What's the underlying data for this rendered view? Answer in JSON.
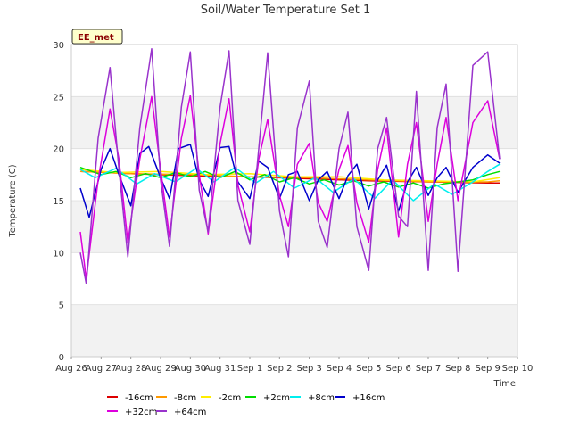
{
  "chart_data": {
    "type": "line",
    "title": "Soil/Water Temperature Set 1",
    "xlabel": "Time",
    "ylabel": "Temperature (C)",
    "ylim": [
      0,
      30
    ],
    "yticks": [
      "0",
      "5",
      "10",
      "15",
      "20",
      "25",
      "30"
    ],
    "xticks": [
      "Aug 26",
      "Aug 27",
      "Aug 28",
      "Aug 29",
      "Aug 30",
      "Aug 31",
      "Sep 1",
      "Sep 2",
      "Sep 3",
      "Sep 4",
      "Sep 5",
      "Sep 6",
      "Sep 7",
      "Sep 8",
      "Sep 9",
      "Sep 10"
    ],
    "xlim_days": [
      0,
      15
    ],
    "grid": "horizontal bands",
    "legend_position": "bottom",
    "station_label": "EE_met",
    "series": [
      {
        "name": "-16cm",
        "color": "#dd0000",
        "x": [
          0.3,
          2,
          4,
          6,
          8,
          10,
          12,
          14,
          14.4
        ],
        "y": [
          17.8,
          17.6,
          17.4,
          17.3,
          17.1,
          16.9,
          16.8,
          16.7,
          16.7
        ]
      },
      {
        "name": "-8cm",
        "color": "#ff9900",
        "x": [
          0.3,
          2,
          4,
          6,
          8,
          10,
          12,
          14,
          14.4
        ],
        "y": [
          17.8,
          17.6,
          17.5,
          17.3,
          17.2,
          17.0,
          16.8,
          16.8,
          16.9
        ]
      },
      {
        "name": "-2cm",
        "color": "#ffee00",
        "x": [
          0.3,
          1.5,
          3,
          4.5,
          6,
          7.5,
          9,
          10.5,
          12,
          13.5,
          14.4
        ],
        "y": [
          18.0,
          17.7,
          17.8,
          17.5,
          17.6,
          17.3,
          17.3,
          17.0,
          16.9,
          16.8,
          17.2
        ]
      },
      {
        "name": "+2cm",
        "color": "#00dd00",
        "x": [
          0.3,
          1,
          1.5,
          2,
          2.5,
          3,
          3.5,
          4,
          4.5,
          5,
          5.5,
          6,
          6.5,
          7,
          7.5,
          8,
          8.5,
          9,
          9.5,
          10,
          10.5,
          11,
          11.5,
          12,
          12.5,
          13,
          13.5,
          14,
          14.4
        ],
        "y": [
          18.2,
          17.5,
          17.8,
          17.2,
          17.6,
          17.2,
          17.7,
          17.3,
          17.8,
          17.2,
          17.8,
          17.0,
          17.5,
          16.8,
          17.2,
          16.6,
          17.0,
          16.5,
          16.9,
          16.4,
          16.8,
          16.3,
          16.7,
          16.2,
          16.6,
          16.8,
          17.0,
          17.5,
          17.8
        ]
      },
      {
        "name": "+8cm",
        "color": "#00eeee",
        "x": [
          0.3,
          0.8,
          1.5,
          2.2,
          2.8,
          3.5,
          4.2,
          4.8,
          5.5,
          6.2,
          6.8,
          7.5,
          8.2,
          8.8,
          9.5,
          10.2,
          10.8,
          11.5,
          12.2,
          12.8,
          13.5,
          14,
          14.4
        ],
        "y": [
          18.0,
          17.2,
          18.1,
          16.6,
          17.6,
          16.8,
          18.1,
          16.8,
          18.2,
          16.7,
          17.8,
          16.2,
          17.2,
          15.8,
          17.1,
          15.2,
          17.0,
          15.0,
          16.6,
          15.6,
          16.8,
          17.8,
          18.5
        ]
      },
      {
        "name": "+16cm",
        "color": "#0000cc",
        "x": [
          0.3,
          0.6,
          1.0,
          1.3,
          1.6,
          2.0,
          2.3,
          2.6,
          3.0,
          3.3,
          3.6,
          4.0,
          4.3,
          4.6,
          5.0,
          5.3,
          5.6,
          6.0,
          6.3,
          6.6,
          7.0,
          7.3,
          7.6,
          8.0,
          8.3,
          8.6,
          9.0,
          9.3,
          9.6,
          10.0,
          10.3,
          10.6,
          11.0,
          11.3,
          11.6,
          12.0,
          12.3,
          12.6,
          13.0,
          13.5,
          14.0,
          14.4
        ],
        "y": [
          16.2,
          13.4,
          18.0,
          20.0,
          17.5,
          14.5,
          19.5,
          20.2,
          17.2,
          15.2,
          20.0,
          20.4,
          17.0,
          15.4,
          20.1,
          20.2,
          16.8,
          15.2,
          18.8,
          18.2,
          15.2,
          17.5,
          17.8,
          15.0,
          17.0,
          17.8,
          15.2,
          17.4,
          18.5,
          14.2,
          17.0,
          18.4,
          14.0,
          16.8,
          18.2,
          15.5,
          17.2,
          18.2,
          15.8,
          18.2,
          19.4,
          18.6
        ]
      },
      {
        "name": "+32cm",
        "color": "#dd00dd",
        "x": [
          0.3,
          0.5,
          0.9,
          1.3,
          1.6,
          1.9,
          2.3,
          2.7,
          3.0,
          3.3,
          3.7,
          4.0,
          4.3,
          4.6,
          5.0,
          5.3,
          5.6,
          6.0,
          6.3,
          6.6,
          7.0,
          7.3,
          7.6,
          8.0,
          8.3,
          8.6,
          9.0,
          9.3,
          9.6,
          10.0,
          10.3,
          10.6,
          11.0,
          11.3,
          11.6,
          12.0,
          12.3,
          12.6,
          13.0,
          13.5,
          14.0,
          14.4
        ],
        "y": [
          12.0,
          7.5,
          17.0,
          23.8,
          19.0,
          11.0,
          19.0,
          25.0,
          18.0,
          11.5,
          21.0,
          25.1,
          17.5,
          11.8,
          20.5,
          24.8,
          16.5,
          12.0,
          19.0,
          22.8,
          15.5,
          12.5,
          18.5,
          20.5,
          14.8,
          13.0,
          18.0,
          20.3,
          14.8,
          11.0,
          18.0,
          22.0,
          11.5,
          18.5,
          22.5,
          13.0,
          18.5,
          23.0,
          15.0,
          22.5,
          24.6,
          19.0
        ]
      },
      {
        "name": "+64cm",
        "color": "#9933cc",
        "x": [
          0.3,
          0.5,
          0.9,
          1.3,
          1.6,
          1.9,
          2.3,
          2.7,
          3.0,
          3.3,
          3.7,
          4.0,
          4.3,
          4.6,
          5.0,
          5.3,
          5.6,
          6.0,
          6.3,
          6.6,
          7.0,
          7.3,
          7.6,
          8.0,
          8.3,
          8.6,
          9.0,
          9.3,
          9.6,
          10.0,
          10.3,
          10.6,
          11.0,
          11.3,
          11.6,
          12.0,
          12.3,
          12.6,
          13.0,
          13.5,
          14.0,
          14.4
        ],
        "y": [
          10.0,
          7.0,
          21.0,
          27.8,
          18.0,
          9.6,
          22.0,
          29.6,
          17.0,
          10.6,
          24.0,
          29.3,
          16.0,
          12.0,
          24.0,
          29.4,
          15.0,
          10.8,
          20.0,
          29.2,
          14.0,
          9.6,
          22.0,
          26.5,
          13.0,
          10.5,
          20.0,
          23.5,
          12.5,
          8.3,
          20.0,
          23.0,
          13.5,
          12.5,
          25.5,
          8.3,
          22.0,
          26.2,
          8.2,
          28.0,
          29.3,
          19.0
        ]
      }
    ]
  }
}
